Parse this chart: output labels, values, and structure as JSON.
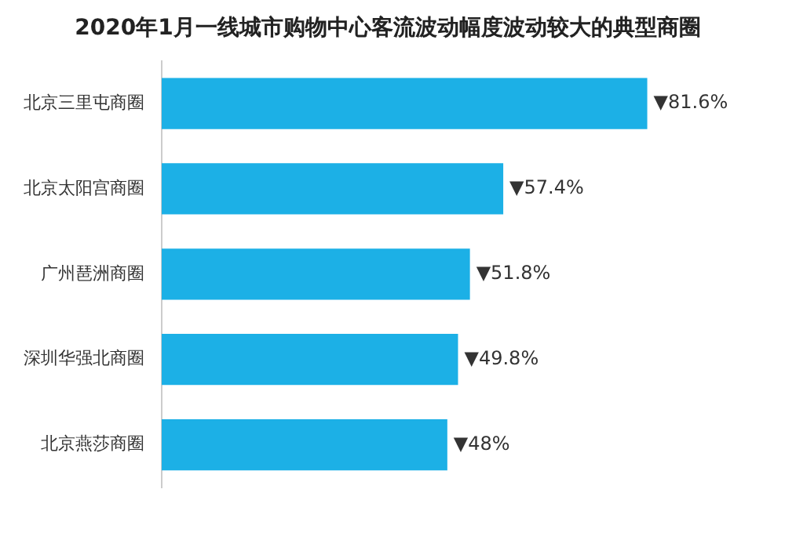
{
  "chart_data": {
    "type": "bar",
    "orientation": "horizontal",
    "title": "2020年1月一线城市购物中心客流波动幅度波动较大的典型商圈",
    "categories": [
      "北京三里屯商圈",
      "北京太阳宫商圈",
      "广州琶洲商圈",
      "深圳华强北商圈",
      "北京燕莎商圈"
    ],
    "values": [
      81.6,
      57.4,
      51.8,
      49.8,
      48
    ],
    "value_labels": [
      "▼81.6%",
      "▼57.4%",
      "▼51.8%",
      "▼49.8%",
      "▼48%"
    ],
    "color": "#1cb0e6"
  }
}
